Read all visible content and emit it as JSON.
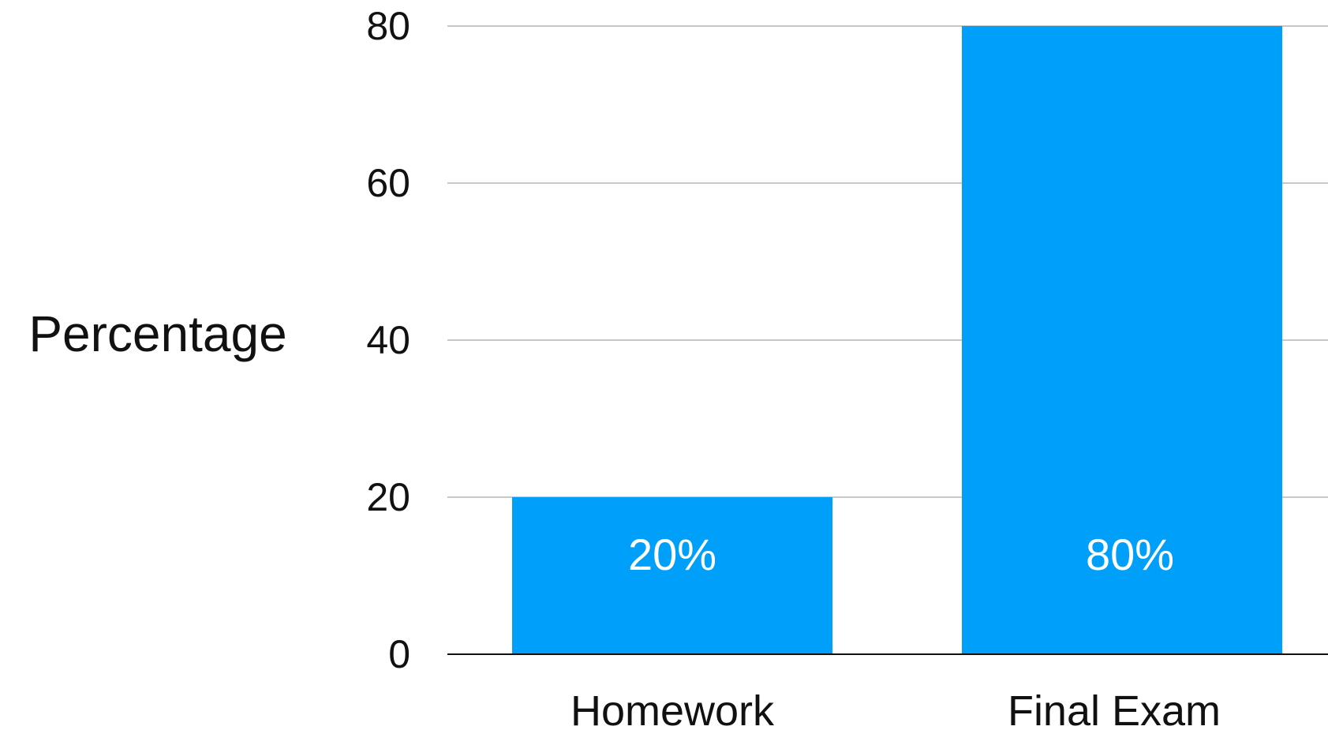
{
  "chart_data": {
    "type": "bar",
    "title": "",
    "xlabel": "",
    "ylabel": "Percentage",
    "categories": [
      "Homework",
      "Final Exam"
    ],
    "values": [
      20,
      80
    ],
    "data_labels": [
      "20%",
      "80%"
    ],
    "yticks": [
      "0",
      "20",
      "40",
      "60",
      "80"
    ],
    "ylim": [
      0,
      80
    ],
    "grid": true,
    "legend": "none",
    "colors": {
      "bar": "#009ffa",
      "grid": "#c8c8c8",
      "axis": "#111111",
      "text": "#111111",
      "bar_text": "#ffffff"
    }
  }
}
